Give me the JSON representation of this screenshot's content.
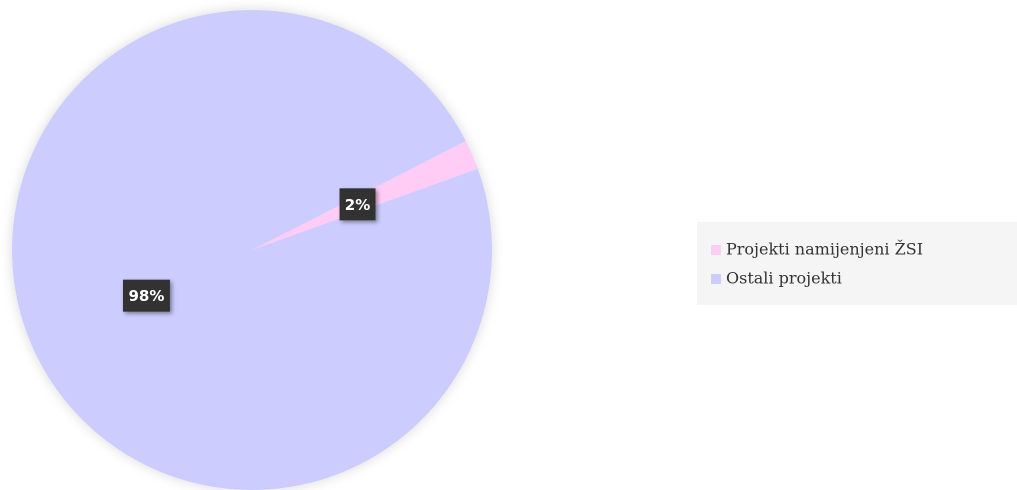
{
  "chart_data": {
    "type": "pie",
    "categories": [
      "Projekti namijenjeni ŽSI",
      "Ostali projekti"
    ],
    "values": [
      2,
      98
    ],
    "value_labels": [
      "2%",
      "98%"
    ],
    "colors": [
      "#ffccf5",
      "#ccccff"
    ],
    "legend": "right"
  }
}
